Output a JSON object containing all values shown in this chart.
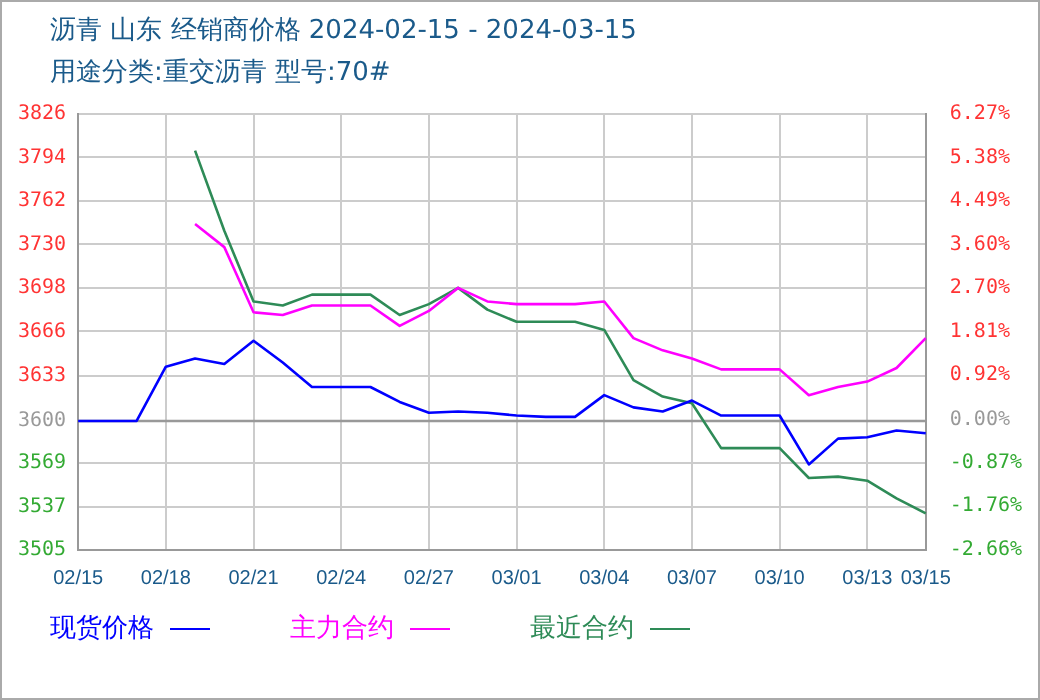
{
  "chart_data": {
    "type": "line",
    "title": "沥青  山东 经销商价格 2024-02-15 - 2024-03-15",
    "subtitle": "用途分类:重交沥青  型号:70#",
    "categories": [
      "02/15",
      null,
      null,
      "02/18",
      null,
      null,
      "02/21",
      null,
      null,
      "02/24",
      null,
      null,
      "02/27",
      null,
      null,
      "03/01",
      null,
      null,
      "03/04",
      null,
      null,
      "03/07",
      null,
      null,
      "03/10",
      null,
      null,
      "03/13",
      null,
      "03/15"
    ],
    "series": [
      {
        "name": "现货价格",
        "color": "#0000ff",
        "values": [
          3600,
          3600,
          3600,
          3640,
          3646,
          3642,
          3659,
          3643,
          3625,
          3625,
          3625,
          3614,
          3606,
          3607,
          3606,
          3604,
          3603,
          3603,
          3619,
          3610,
          3607,
          3615,
          3604,
          3604,
          3604,
          3568,
          3587,
          3588,
          3593,
          3591
        ]
      },
      {
        "name": "主力合约",
        "color": "#ff00ff",
        "values": [
          null,
          null,
          null,
          null,
          3745,
          3728,
          3680,
          3678,
          3685,
          3685,
          3685,
          3670,
          3681,
          3698,
          3688,
          3686,
          3686,
          3686,
          3688,
          3661,
          3652,
          3646,
          3638,
          3638,
          3638,
          3619,
          3625,
          3629,
          3639,
          3661
        ]
      },
      {
        "name": "最近合约",
        "color": "#2e8b57",
        "values": [
          null,
          null,
          null,
          null,
          3799,
          3740,
          3688,
          3685,
          3693,
          3693,
          3693,
          3678,
          3686,
          3698,
          3682,
          3673,
          3673,
          3673,
          3667,
          3630,
          3618,
          3613,
          3580,
          3580,
          3580,
          3558,
          3559,
          3556,
          3543,
          3532
        ]
      }
    ],
    "ylim": [
      3505,
      3826
    ],
    "yticks": [
      3505,
      3537,
      3569,
      3600,
      3633,
      3666,
      3698,
      3730,
      3762,
      3794,
      3826
    ],
    "y2lim": [
      -2.66,
      6.27
    ],
    "y2ticks": [
      {
        "value": -2.66,
        "label": "-2.66%"
      },
      {
        "value": -1.76,
        "label": "-1.76%"
      },
      {
        "value": -0.87,
        "label": "-0.87%"
      },
      {
        "value": 0,
        "label": "0.00%"
      },
      {
        "value": 0.92,
        "label": "0.92%"
      },
      {
        "value": 1.81,
        "label": "1.81%"
      },
      {
        "value": 2.7,
        "label": "2.70%"
      },
      {
        "value": 3.6,
        "label": "3.60%"
      },
      {
        "value": 4.49,
        "label": "4.49%"
      },
      {
        "value": 5.38,
        "label": "5.38%"
      },
      {
        "value": 6.27,
        "label": "6.27%"
      }
    ],
    "ref_lines": [
      {
        "axis": "y",
        "value": 3600,
        "color": "#999999"
      }
    ],
    "grid": true,
    "legend": "bottom",
    "marker": "none",
    "line_style": "solid"
  }
}
